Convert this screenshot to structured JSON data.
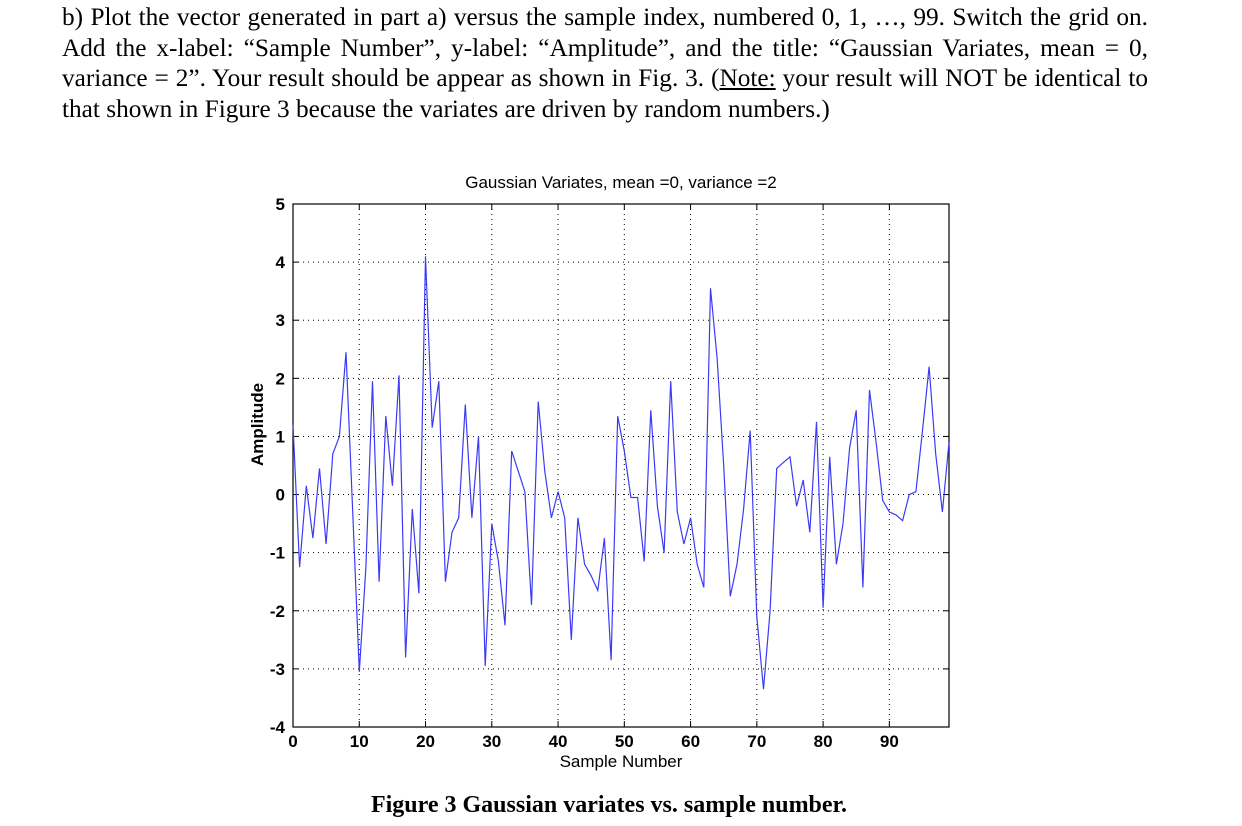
{
  "document": {
    "paragraph": {
      "before_note": "b) Plot the vector generated in part a) versus the sample index, numbered 0, 1, …, 99. Switch the grid on. Add the x-label: “Sample Number”, y-label: “Amplitude”, and the title: “Gaussian Variates, mean = 0, variance = 2”. Your result should be appear as shown in Fig. 3. (",
      "note_label": "Note:",
      "after_note": " your result will NOT be identical to that shown in Figure 3 because the variates are driven by random numbers.)"
    },
    "caption": "Figure 3 Gaussian variates vs. sample number."
  },
  "chart_data": {
    "type": "line",
    "title": "Gaussian Variates, mean =0, variance =2",
    "xlabel": "Sample Number",
    "ylabel": "Amplitude",
    "xlim": [
      0,
      99
    ],
    "ylim": [
      -4,
      5
    ],
    "grid": true,
    "x_ticks": [
      0,
      10,
      20,
      30,
      40,
      50,
      60,
      70,
      80,
      90
    ],
    "y_ticks": [
      -4,
      -3,
      -2,
      -1,
      0,
      1,
      2,
      3,
      4,
      5
    ],
    "line_color": "#3b3bf5",
    "series": [
      {
        "name": "Gaussian variates",
        "x_start": 0,
        "values": [
          1.2,
          -1.25,
          0.15,
          -0.75,
          0.45,
          -0.85,
          0.7,
          1.0,
          2.45,
          -0.25,
          -3.05,
          -1.25,
          1.95,
          -1.5,
          1.35,
          0.15,
          2.05,
          -2.8,
          -0.25,
          -1.7,
          4.1,
          1.15,
          1.95,
          -1.5,
          -0.65,
          -0.4,
          1.55,
          -0.4,
          1.0,
          -2.95,
          -0.5,
          -1.15,
          -2.25,
          0.75,
          0.4,
          0.05,
          -1.9,
          1.6,
          0.4,
          -0.4,
          0.05,
          -0.4,
          -2.5,
          -0.4,
          -1.2,
          -1.4,
          -1.65,
          -0.75,
          -2.85,
          1.35,
          0.75,
          -0.05,
          -0.05,
          -1.15,
          1.45,
          -0.2,
          -1.0,
          1.95,
          -0.3,
          -0.85,
          -0.4,
          -1.2,
          -1.6,
          3.55,
          2.35,
          0.5,
          -1.75,
          -1.2,
          -0.25,
          1.1,
          -2.1,
          -3.35,
          -2.0,
          0.45,
          0.55,
          0.65,
          -0.2,
          0.25,
          -0.65,
          1.25,
          -1.95,
          0.65,
          -1.2,
          -0.5,
          0.8,
          1.45,
          -1.6,
          1.8,
          0.9,
          -0.1,
          -0.3,
          -0.35,
          -0.45,
          0.0,
          0.05,
          1.1,
          2.2,
          0.7,
          -0.3,
          0.9
        ]
      }
    ]
  }
}
